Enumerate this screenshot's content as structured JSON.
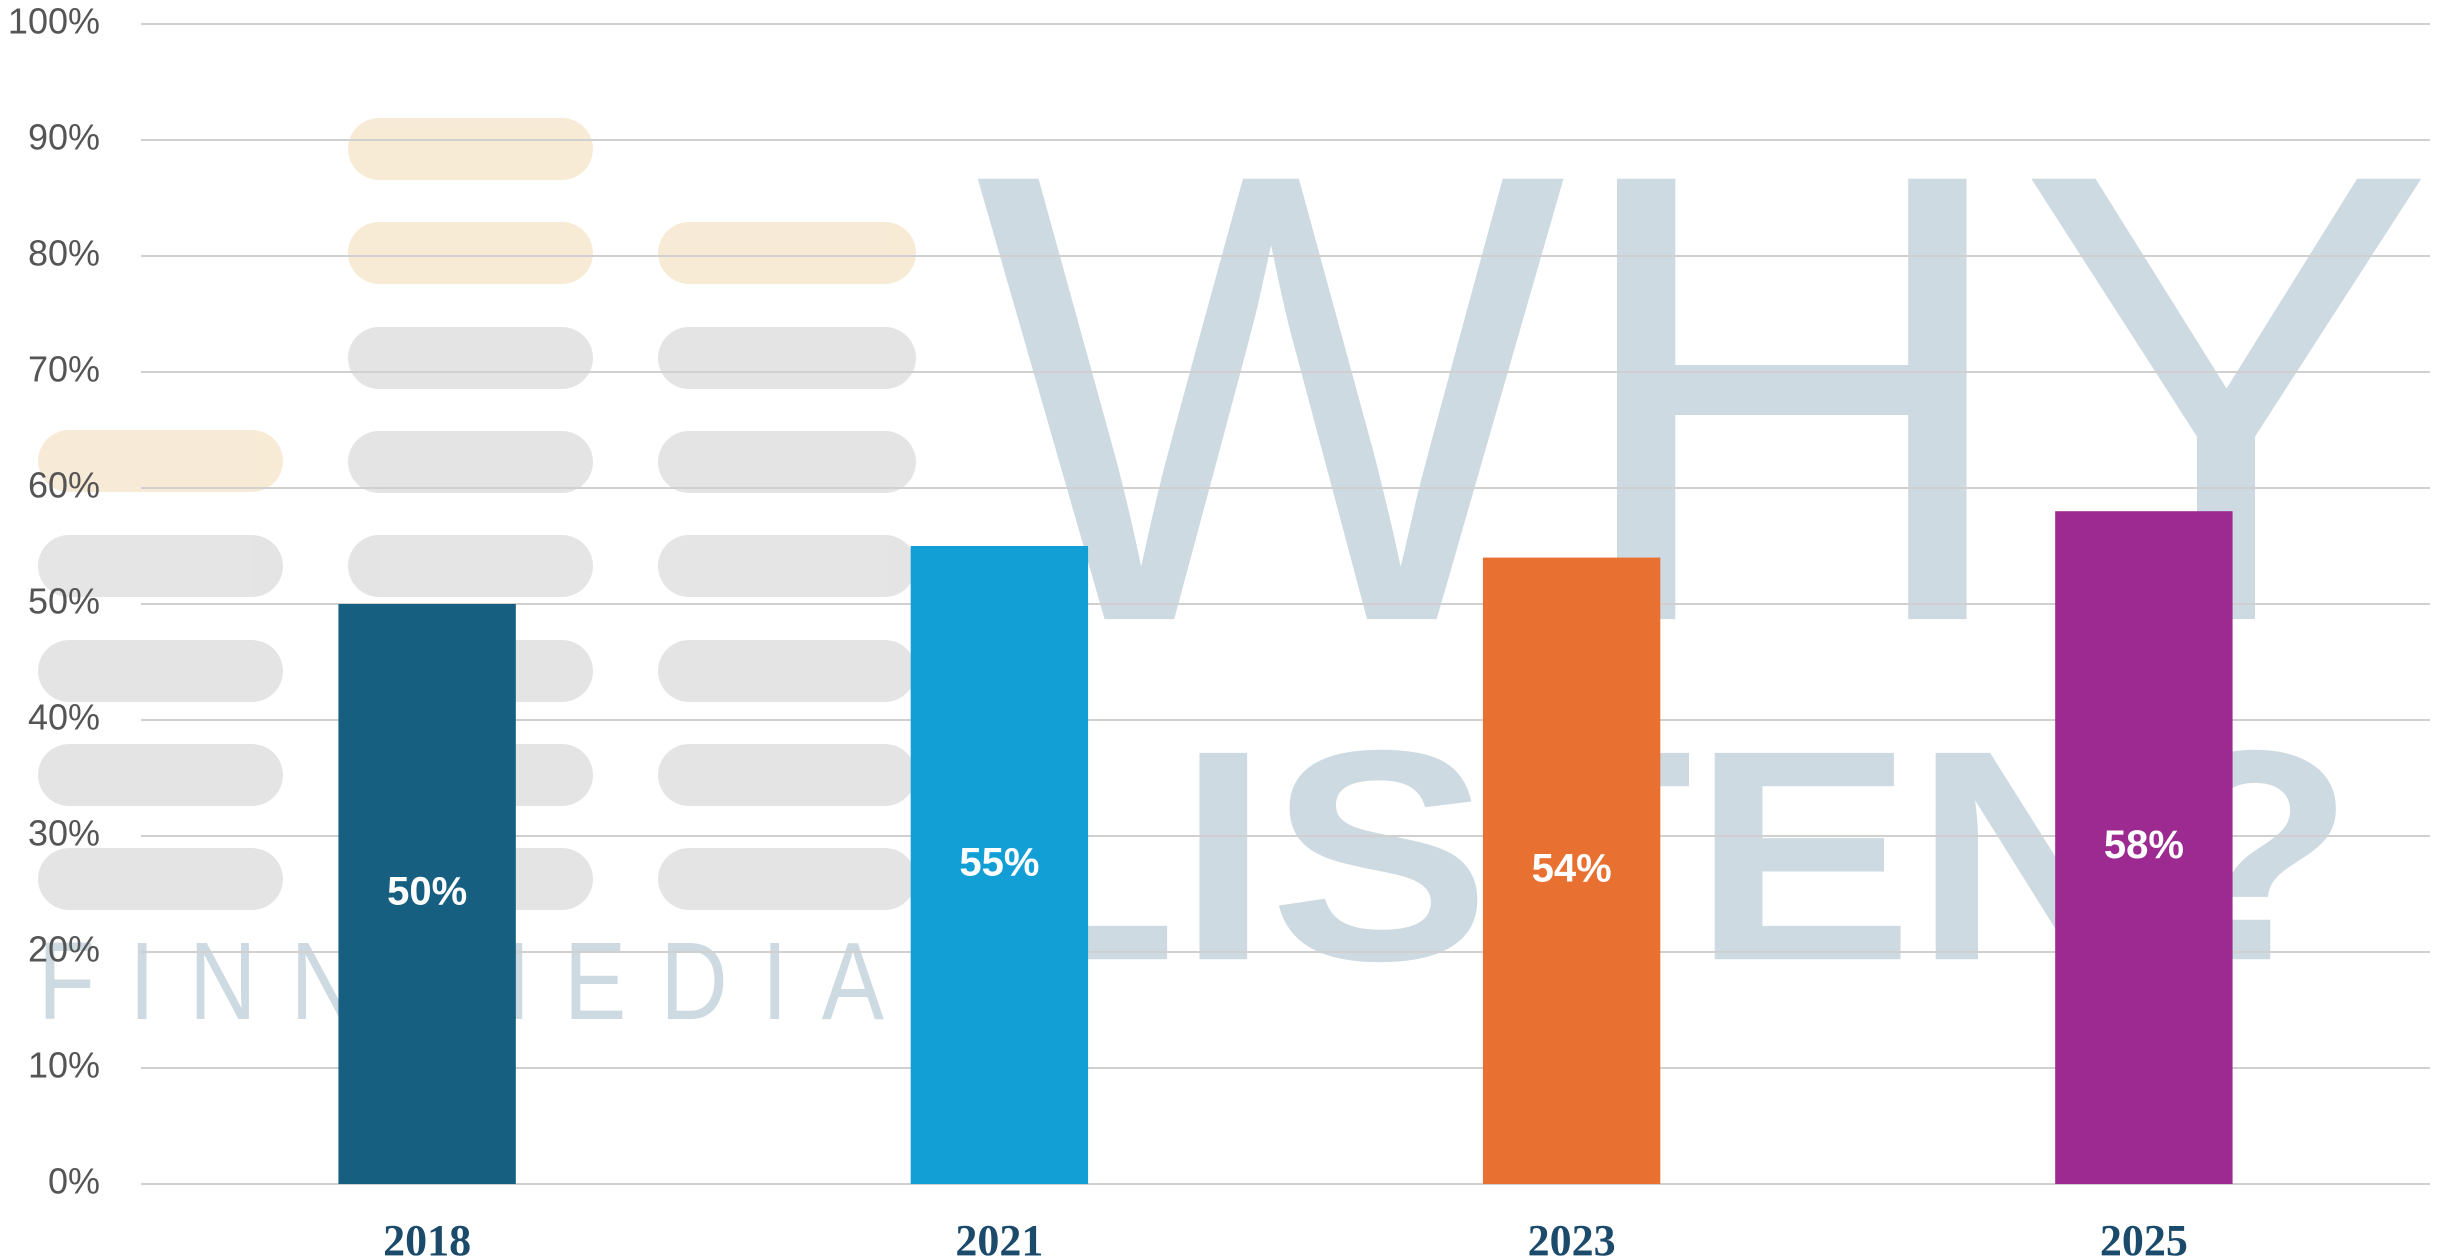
{
  "chart_data": {
    "type": "bar",
    "watermark": {
      "top": "WHY",
      "bottom": "LISTEN?",
      "brand": "FINN MEDIA"
    },
    "categories": [
      "2018",
      "2021",
      "2023",
      "2025"
    ],
    "values": [
      50,
      55,
      54,
      58
    ],
    "value_labels": [
      "50%",
      "55%",
      "54%",
      "58%"
    ],
    "colors": [
      "#165f80",
      "#129fd6",
      "#e87132",
      "#9d2a91"
    ],
    "ylim": [
      0,
      100
    ],
    "yticks": [
      {
        "value": 0,
        "label": "0%"
      },
      {
        "value": 10,
        "label": "10%"
      },
      {
        "value": 20,
        "label": "20%"
      },
      {
        "value": 30,
        "label": "30%"
      },
      {
        "value": 40,
        "label": "40%"
      },
      {
        "value": 50,
        "label": "50%"
      },
      {
        "value": 60,
        "label": "60%"
      },
      {
        "value": 70,
        "label": "70%"
      },
      {
        "value": 80,
        "label": "80%"
      },
      {
        "value": 90,
        "label": "90%"
      },
      {
        "value": 100,
        "label": "100%"
      }
    ],
    "grid": true
  }
}
